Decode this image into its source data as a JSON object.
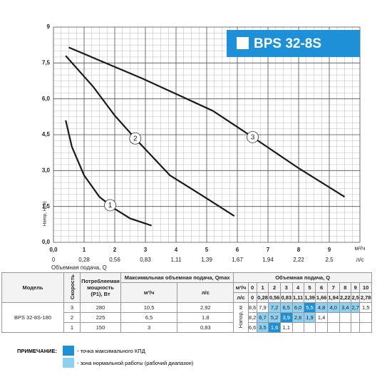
{
  "chart_data": {
    "type": "line",
    "title": "BPS 32-8S",
    "x_label": "Объемная подача, Q",
    "y_label": "Напор, Н (м)",
    "x_unit": "м³/ч",
    "x2_unit": "л/с",
    "xlim": [
      0,
      10
    ],
    "ylim": [
      0,
      9
    ],
    "xticks": [
      {
        "value": 0,
        "label": "0,0"
      },
      1,
      2,
      3,
      4,
      5,
      6,
      7,
      8,
      9
    ],
    "x2ticks": [
      0,
      {
        "value": 1,
        "label": "0,28"
      },
      {
        "value": 2,
        "label": "0,56"
      },
      {
        "value": 3,
        "label": "0,83"
      },
      {
        "value": 4,
        "label": "1,11"
      },
      {
        "value": 5,
        "label": "1,39"
      },
      {
        "value": 6,
        "label": "1,67"
      },
      {
        "value": 7,
        "label": "1,94"
      },
      {
        "value": 8,
        "label": "2,22"
      },
      {
        "value": 9,
        "label": "2,5"
      }
    ],
    "yticks": [
      {
        "value": 0,
        "label": "0,0"
      },
      {
        "value": 1.5,
        "label": "1,5"
      },
      {
        "value": 3,
        "label": "3,0"
      },
      {
        "value": 4.5,
        "label": "4,5"
      },
      {
        "value": 6,
        "label": "6,0"
      },
      {
        "value": 7.5,
        "label": "7,5"
      },
      9
    ],
    "grid": true,
    "minor_grid_step": 0.25,
    "title_color": "#1e90d8",
    "series": [
      {
        "name": "1",
        "color": "#1a1a1a",
        "x": [
          0.4,
          0.6,
          1,
          1.5,
          2,
          2.5,
          3.2
        ],
        "values": [
          5.1,
          4.0,
          2.8,
          1.9,
          1.4,
          1.0,
          0.7
        ]
      },
      {
        "name": "2",
        "color": "#1a1a1a",
        "x": [
          0.4,
          1.3,
          2,
          2.7,
          3.8,
          4.8,
          5.9
        ],
        "values": [
          7.8,
          6.5,
          5.3,
          4.3,
          2.8,
          2.0,
          1.1
        ]
      },
      {
        "name": "3",
        "color": "#1a1a1a",
        "x": [
          0.5,
          2.9,
          5.2,
          6.5,
          8,
          9.5
        ],
        "values": [
          8.15,
          6.85,
          5.5,
          4.4,
          3.1,
          1.9
        ]
      }
    ]
  },
  "table": {
    "headers": {
      "model": "Модель",
      "speed": "Скорость",
      "power": "Потребляемая мощность (Р1), Вт",
      "qmax": "Максимальная объемная подача, Qmax",
      "flow": "Объемная подача, Q",
      "qmax_units": [
        "м³/ч",
        "л/с"
      ],
      "head_label": "Напор, м",
      "flow_rows": [
        {
          "unit": "м³/ч",
          "values": [
            "0",
            "1",
            "2",
            "3",
            "4",
            "5",
            "6",
            "7",
            "8",
            "9",
            "10"
          ]
        },
        {
          "unit": "л/с",
          "values": [
            "0",
            "0,28",
            "0,56",
            "0,83",
            "1,11",
            "1,39",
            "1,66",
            "1,94",
            "2,22",
            "2,5",
            "2,78"
          ]
        }
      ]
    },
    "model": "BPS 32-8S-180",
    "rows": [
      {
        "speed": "3",
        "power": "280",
        "qmax_m3h": "10,5",
        "qmax_ls": "2,92",
        "head": [
          "8,6",
          "7,9",
          "7,2",
          "6,5",
          "6,0",
          "5,5",
          "4,8",
          "4,0",
          "3,4",
          "2,7",
          "1,5"
        ]
      },
      {
        "speed": "2",
        "power": "225",
        "qmax_m3h": "6,5",
        "qmax_ls": "1,8",
        "head": [
          "8,2",
          "6,7",
          "5,2",
          "3,9",
          "2,6",
          "1,9",
          "1,4"
        ]
      },
      {
        "speed": "1",
        "power": "150",
        "qmax_m3h": "3",
        "qmax_ls": "0,83",
        "head": [
          "6,6",
          "3,5",
          "1,6",
          "1,1"
        ]
      }
    ]
  },
  "note": {
    "title": "ПРИМЕЧАНИЕ:",
    "items": [
      "- точка максимального КПД",
      "- зона нормальной работы (рабочий диапазон)"
    ]
  }
}
